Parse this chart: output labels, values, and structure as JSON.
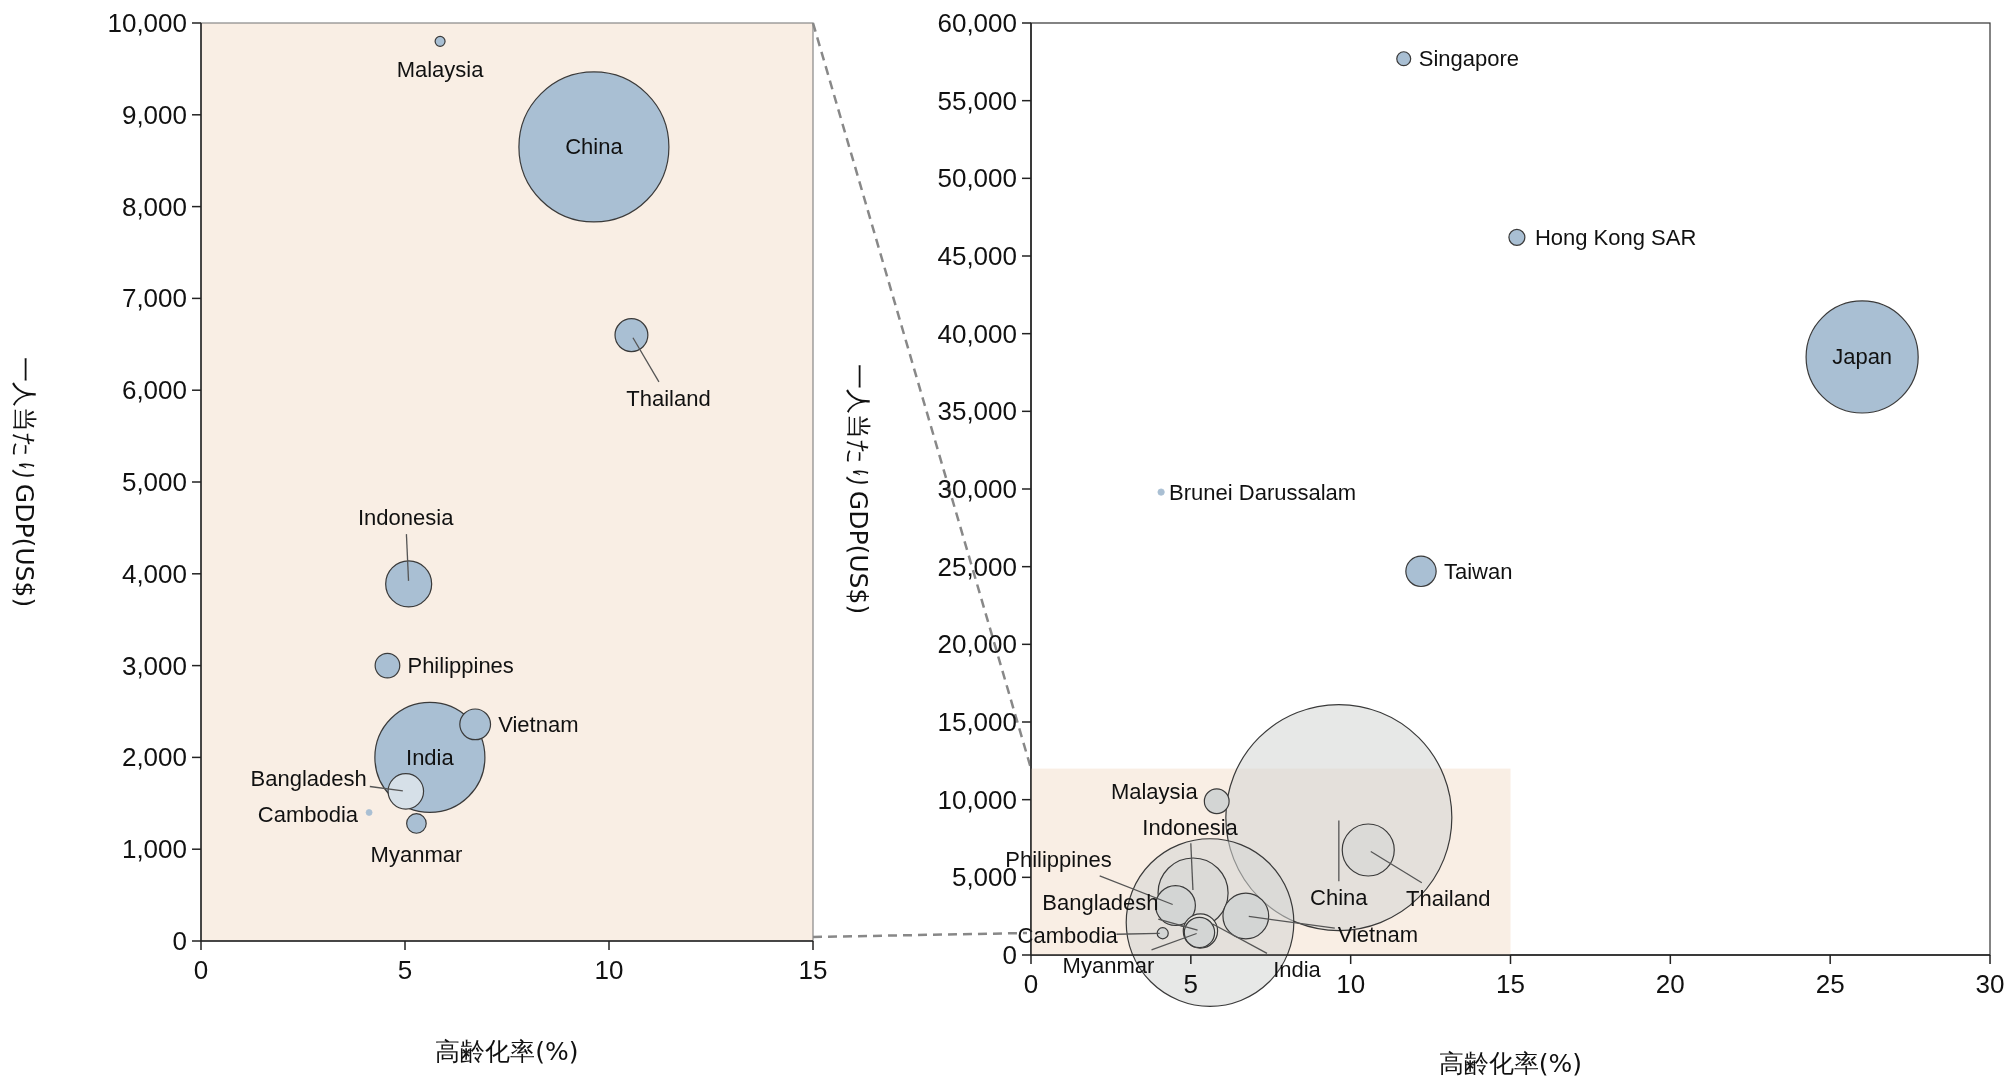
{
  "chart_data": [
    {
      "type": "bubble",
      "xlabel": "高齢化率(%)",
      "ylabel": "一人当たりGDP(US$)",
      "x": [
        5.86,
        9.63,
        10.55,
        5.09,
        4.57,
        6.72,
        5.61,
        5.02,
        4.12,
        5.28
      ],
      "values": [
        9800,
        8650,
        6600,
        3890,
        3000,
        2360,
        2000,
        1630,
        1400,
        1280
      ],
      "sizes": [
        0.0044,
        1,
        0.048,
        0.094,
        0.027,
        0.042,
        0.538,
        0.056,
        0.0016,
        0.017
      ],
      "colors": [
        "#a9bfd3",
        "#a9bfd3",
        "#a9bfd3",
        "#a9bfd3",
        "#a9bfd3",
        "#a9bfd3",
        "#a9bfd3",
        "#d6e0e8",
        "#a9bfd3",
        "#a9bfd3"
      ],
      "marker": "circle",
      "xlim": [
        0,
        15
      ],
      "xticks": [
        0,
        5,
        10,
        15
      ],
      "ylim": [
        0,
        10000
      ],
      "yticks": [
        0,
        {
          "value": 1000,
          "label": "1,000"
        },
        {
          "value": 2000,
          "label": "2,000"
        },
        {
          "value": 3000,
          "label": "3,000"
        },
        {
          "value": 4000,
          "label": "4,000"
        },
        {
          "value": 5000,
          "label": "5,000"
        },
        {
          "value": 6000,
          "label": "6,000"
        },
        {
          "value": 7000,
          "label": "7,000"
        },
        {
          "value": 8000,
          "label": "8,000"
        },
        {
          "value": 9000,
          "label": "9,000"
        },
        {
          "value": 10000,
          "label": "10,000"
        }
      ],
      "annotations": [
        {
          "text": "Malaysia",
          "x": 5.86,
          "y": 9800
        },
        {
          "text": "China",
          "x": 9.63,
          "y": 8650
        },
        {
          "text": "Thailand",
          "x": 10.55,
          "y": 6600
        },
        {
          "text": "Indonesia",
          "x": 5.09,
          "y": 3890
        },
        {
          "text": "Philippines",
          "x": 4.57,
          "y": 3000
        },
        {
          "text": "Vietnam",
          "x": 6.72,
          "y": 2360
        },
        {
          "text": "India",
          "x": 5.61,
          "y": 2000
        },
        {
          "text": "Bangladesh",
          "x": 5.02,
          "y": 1630
        },
        {
          "text": "Cambodia",
          "x": 4.12,
          "y": 1400
        },
        {
          "text": "Myanmar",
          "x": 5.28,
          "y": 1280
        }
      ]
    },
    {
      "type": "bubble",
      "xlabel": "高齢化率(%)",
      "ylabel": "一人当たりGDP(US$)",
      "x": [
        11.66,
        15.2,
        26.0,
        4.07,
        12.2,
        9.63,
        5.81,
        5.07,
        10.55,
        4.52,
        6.72,
        5.6,
        5.3,
        4.12,
        5.27
      ],
      "values": [
        57700,
        46200,
        38500,
        29800,
        24700,
        8850,
        9900,
        3990,
        6760,
        3180,
        2510,
        2090,
        1550,
        1400,
        1450
      ],
      "sizes": [
        0.0038,
        0.005,
        0.246,
        0.0008,
        0.018,
        1,
        0.012,
        0.096,
        0.053,
        0.031,
        0.041,
        0.55,
        0.023,
        0.0024,
        0.018
      ],
      "colors": [
        "#a9bfd3",
        "#a9bfd3",
        "#a9bfd3",
        "#a9bfd3",
        "#a9bfd3",
        "#d3d5d4",
        "#d3d5d4",
        "#d3d5d4",
        "#d3d5d4",
        "#d3d5d4",
        "#d3d5d4",
        "#d3d5d4",
        "#e6e4df",
        "#d3d5d4",
        "#d3d5d4"
      ],
      "marker": "circle",
      "xlim": [
        0,
        30
      ],
      "xticks": [
        0,
        5,
        10,
        15,
        20,
        25,
        30
      ],
      "ylim": [
        0,
        60000
      ],
      "yticks": [
        0,
        {
          "value": 5000,
          "label": "5,000"
        },
        {
          "value": 10000,
          "label": "10,000"
        },
        {
          "value": 15000,
          "label": "15,000"
        },
        {
          "value": 20000,
          "label": "20,000"
        },
        {
          "value": 25000,
          "label": "25,000"
        },
        {
          "value": 30000,
          "label": "30,000"
        },
        {
          "value": 35000,
          "label": "35,000"
        },
        {
          "value": 40000,
          "label": "40,000"
        },
        {
          "value": 45000,
          "label": "45,000"
        },
        {
          "value": 50000,
          "label": "50,000"
        },
        {
          "value": 55000,
          "label": "55,000"
        },
        {
          "value": 60000,
          "label": "60,000"
        }
      ],
      "annotations": [
        {
          "text": "Singapore",
          "x": 11.66,
          "y": 57700
        },
        {
          "text": "Hong Kong SAR",
          "x": 15.2,
          "y": 46200
        },
        {
          "text": "Japan",
          "x": 26.0,
          "y": 38500
        },
        {
          "text": "Brunei Darussalam",
          "x": 4.07,
          "y": 29800
        },
        {
          "text": "Taiwan",
          "x": 12.2,
          "y": 24700
        },
        {
          "text": "China",
          "x": 9.63,
          "y": 8850
        },
        {
          "text": "Malaysia",
          "x": 5.81,
          "y": 9900
        },
        {
          "text": "Indonesia",
          "x": 5.07,
          "y": 3990
        },
        {
          "text": "Thailand",
          "x": 10.55,
          "y": 6760
        },
        {
          "text": "Philippines",
          "x": 4.52,
          "y": 3180
        },
        {
          "text": "Vietnam",
          "x": 6.72,
          "y": 2510
        },
        {
          "text": "India",
          "x": 5.6,
          "y": 2090
        },
        {
          "text": "Bangladesh",
          "x": 5.3,
          "y": 1550
        },
        {
          "text": "Cambodia",
          "x": 4.12,
          "y": 1400
        },
        {
          "text": "Myanmar",
          "x": 5.27,
          "y": 1450
        }
      ]
    }
  ]
}
